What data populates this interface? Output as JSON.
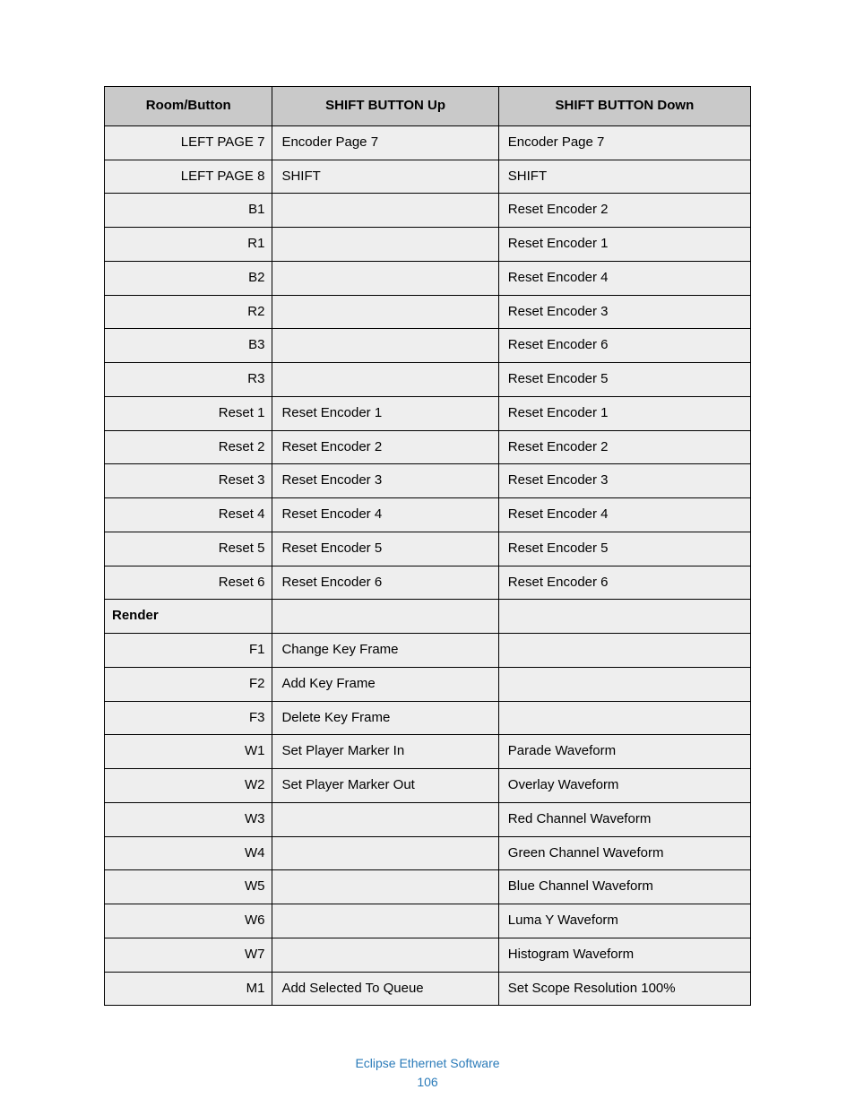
{
  "table": {
    "header_bg": "#c9c9c9",
    "row_bg": "#eeeeee",
    "border_color": "#000000",
    "columns": [
      "Room/Button",
      "SHIFT BUTTON Up",
      "SHIFT BUTTON Down"
    ],
    "rows": [
      {
        "room": "LEFT PAGE 7",
        "up": "Encoder Page 7",
        "down": "Encoder Page 7"
      },
      {
        "room": "LEFT PAGE 8",
        "up": "SHIFT",
        "down": "SHIFT"
      },
      {
        "room": "B1",
        "up": "",
        "down": "Reset Encoder 2"
      },
      {
        "room": "R1",
        "up": "",
        "down": "Reset Encoder 1"
      },
      {
        "room": "B2",
        "up": "",
        "down": "Reset Encoder 4"
      },
      {
        "room": "R2",
        "up": "",
        "down": "Reset Encoder 3"
      },
      {
        "room": "B3",
        "up": "",
        "down": "Reset Encoder 6"
      },
      {
        "room": "R3",
        "up": "",
        "down": "Reset Encoder 5"
      },
      {
        "room": "Reset 1",
        "up": "Reset Encoder 1",
        "down": "Reset Encoder 1"
      },
      {
        "room": "Reset 2",
        "up": "Reset Encoder 2",
        "down": "Reset Encoder 2"
      },
      {
        "room": "Reset 3",
        "up": "Reset Encoder 3",
        "down": "Reset Encoder 3"
      },
      {
        "room": "Reset 4",
        "up": "Reset Encoder 4",
        "down": "Reset Encoder 4"
      },
      {
        "room": "Reset 5",
        "up": "Reset Encoder 5",
        "down": "Reset Encoder 5"
      },
      {
        "room": "Reset 6",
        "up": "Reset Encoder 6",
        "down": "Reset Encoder 6"
      },
      {
        "section": true,
        "room": "Render",
        "up": "",
        "down": ""
      },
      {
        "room": "F1",
        "up": "Change Key Frame",
        "down": ""
      },
      {
        "room": "F2",
        "up": "Add Key Frame",
        "down": ""
      },
      {
        "room": "F3",
        "up": "Delete Key Frame",
        "down": ""
      },
      {
        "room": "W1",
        "up": "Set Player Marker In",
        "down": "Parade Waveform"
      },
      {
        "room": "W2",
        "up": "Set Player Marker Out",
        "down": "Overlay Waveform"
      },
      {
        "room": "W3",
        "up": "",
        "down": "Red Channel Waveform"
      },
      {
        "room": "W4",
        "up": "",
        "down": "Green Channel Waveform"
      },
      {
        "room": "W5",
        "up": "",
        "down": "Blue Channel Waveform"
      },
      {
        "room": "W6",
        "up": "",
        "down": "Luma Y Waveform"
      },
      {
        "room": "W7",
        "up": "",
        "down": "Histogram Waveform"
      },
      {
        "room": "M1",
        "up": "Add Selected To Queue",
        "down": "Set Scope Resolution 100%"
      }
    ]
  },
  "footer": {
    "title": "Eclipse Ethernet Software",
    "page": "106",
    "color": "#2b7bb9"
  }
}
